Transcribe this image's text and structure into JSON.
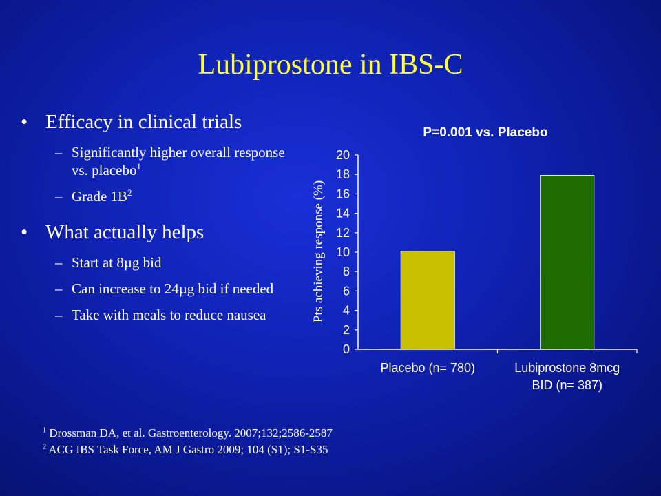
{
  "slide": {
    "title": "Lubiprostone in IBS-C",
    "bullets": [
      {
        "text": "Efficacy in clinical trials",
        "subs": [
          {
            "text": "Significantly higher overall response vs. placebo",
            "sup": "1"
          },
          {
            "text": "Grade 1B",
            "sup": "2"
          }
        ]
      },
      {
        "text": "What actually helps",
        "subs": [
          {
            "text": "Start at 8µg bid",
            "sup": ""
          },
          {
            "text": "Can increase to 24µg bid if needed",
            "sup": ""
          },
          {
            "text": "Take with meals to reduce nausea",
            "sup": ""
          }
        ]
      }
    ],
    "references": [
      {
        "sup": "1",
        "text": "Drossman DA, et al. Gastroenterology. 2007;132;2586-2587"
      },
      {
        "sup": "2",
        "text": "ACG IBS Task Force, AM J Gastro 2009; 104 (S1); S1-S35"
      }
    ],
    "colors": {
      "title": "#ffff33",
      "text": "#ffffff"
    }
  },
  "chart_data": {
    "type": "bar",
    "title": "P=0.001 vs. Placebo",
    "ylabel": "Pts  achieving response (%)",
    "xlabel": "",
    "ylim": [
      0,
      20
    ],
    "yticks": [
      0,
      2,
      4,
      6,
      8,
      10,
      12,
      14,
      16,
      18,
      20
    ],
    "grid": false,
    "legend": "none",
    "categories": [
      {
        "lines": [
          "Placebo (n= 780)"
        ]
      },
      {
        "lines": [
          "Lubiprostone 8mcg",
          "BID (n= 387)"
        ]
      }
    ],
    "values": [
      10.1,
      17.9
    ],
    "colors": [
      "#c8c000",
      "#1e6b00"
    ]
  }
}
